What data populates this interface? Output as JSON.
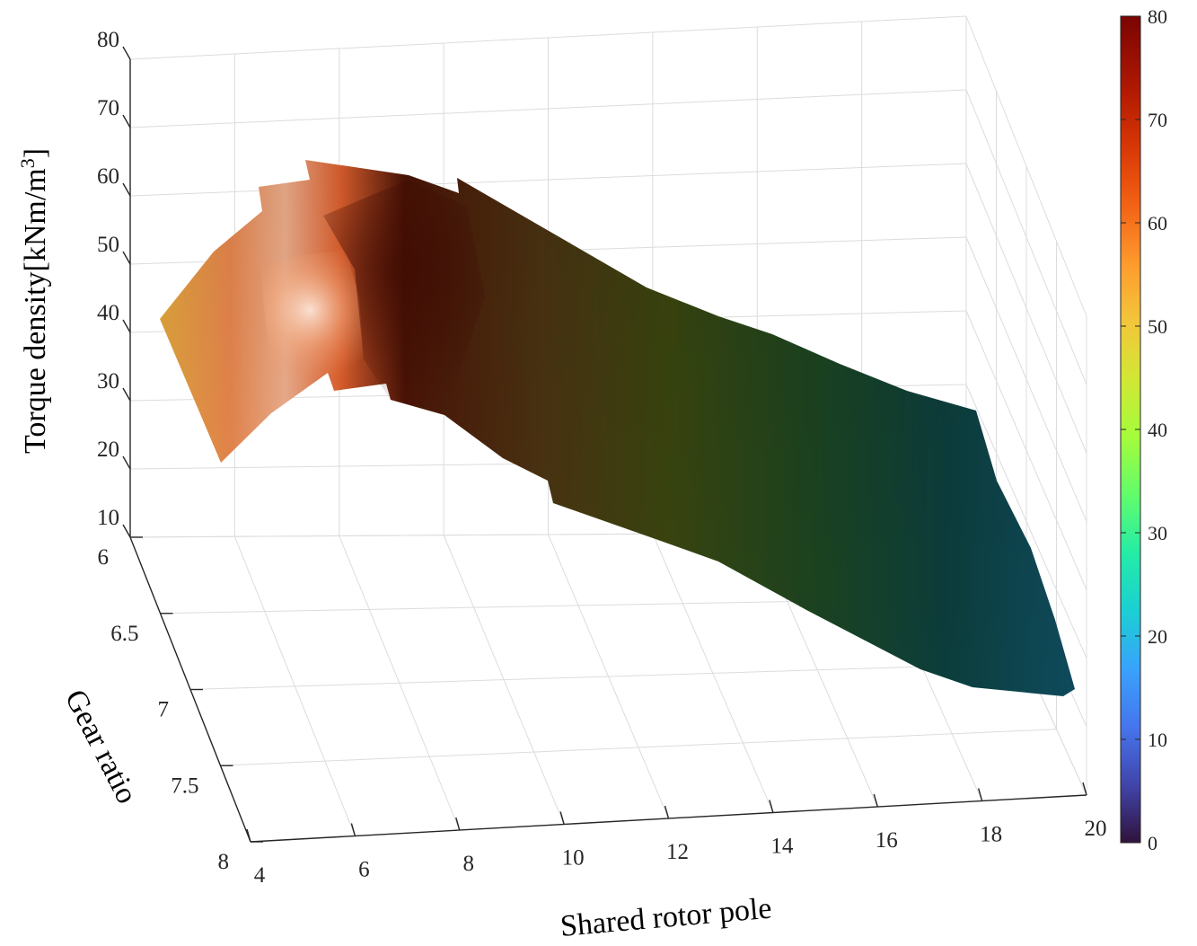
{
  "chart_data": {
    "type": "surface",
    "xlabel": "Shared rotor pole",
    "ylabel": "Gear ratio",
    "zlabel_main": "Torque density[kNm/m",
    "zlabel_sup": "3",
    "zlabel_close": "]",
    "x_ticks": [
      "4",
      "6",
      "8",
      "10",
      "12",
      "14",
      "16",
      "18",
      "20"
    ],
    "y_ticks": [
      "6",
      "6.5",
      "7",
      "7.5",
      "8"
    ],
    "z_ticks": [
      "10",
      "20",
      "30",
      "40",
      "50",
      "60",
      "70",
      "80"
    ],
    "xlim": [
      4,
      20
    ],
    "ylim": [
      6,
      8
    ],
    "zlim": [
      10,
      80
    ],
    "colorbar": {
      "ticks": [
        "0",
        "10",
        "20",
        "30",
        "40",
        "50",
        "60",
        "70",
        "80"
      ],
      "range": [
        0,
        80
      ],
      "colormap": "turbo"
    },
    "surface_z_along_x": [
      {
        "x": 4,
        "z": 52
      },
      {
        "x": 5,
        "z": 66
      },
      {
        "x": 6,
        "z": 74
      },
      {
        "x": 7,
        "z": 79
      },
      {
        "x": 8,
        "z": 70
      },
      {
        "x": 9,
        "z": 62
      },
      {
        "x": 10,
        "z": 55
      },
      {
        "x": 11,
        "z": 48
      },
      {
        "x": 12,
        "z": 41
      },
      {
        "x": 13,
        "z": 37
      },
      {
        "x": 14,
        "z": 32
      },
      {
        "x": 16,
        "z": 27
      },
      {
        "x": 18,
        "z": 24
      },
      {
        "x": 20,
        "z": 22
      }
    ],
    "grid": true
  }
}
